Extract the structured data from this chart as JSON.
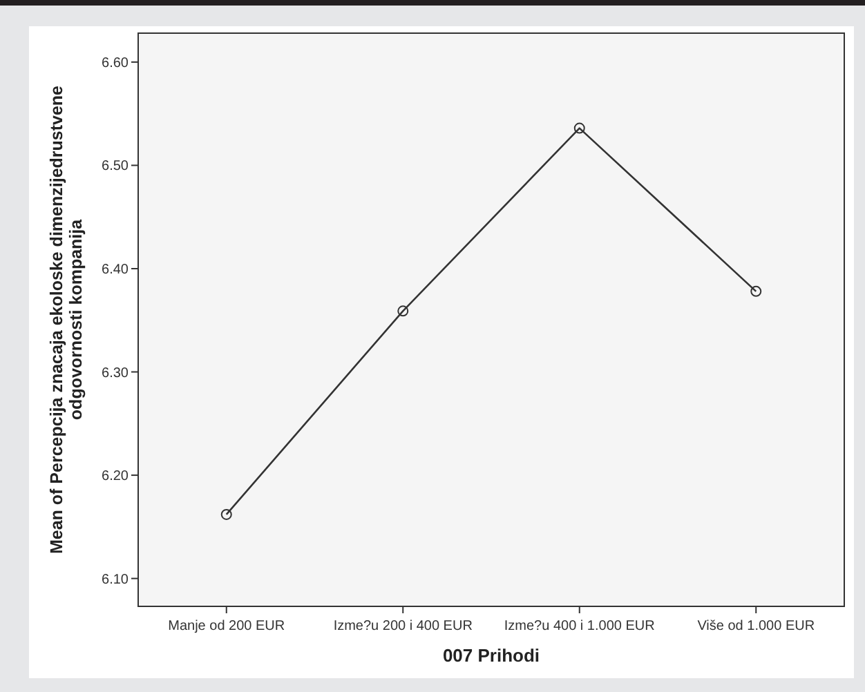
{
  "chart_data": {
    "type": "line",
    "xlabel": "007 Prihodi",
    "ylabel": "Mean of Percepcija znacaja ekoloske dimenzijedrustvene odgovornosti kompanija",
    "categories": [
      "Manje od 200 EUR",
      "Izme?u 200 i 400 EUR",
      "Izme?u 400 i 1.000 EUR",
      "Više od 1.000 EUR"
    ],
    "series": [
      {
        "color": "#333333",
        "values": [
          6.162,
          6.359,
          6.536,
          6.378
        ]
      }
    ],
    "ylim": [
      6.073,
      6.628
    ],
    "yticks": [
      {
        "value": 6.1,
        "label": "6.10"
      },
      {
        "value": 6.2,
        "label": "6.20"
      },
      {
        "value": 6.3,
        "label": "6.30"
      },
      {
        "value": 6.4,
        "label": "6.40"
      },
      {
        "value": 6.5,
        "label": "6.50"
      },
      {
        "value": 6.6,
        "label": "6.60"
      }
    ],
    "marker": "circle",
    "grid": false
  }
}
